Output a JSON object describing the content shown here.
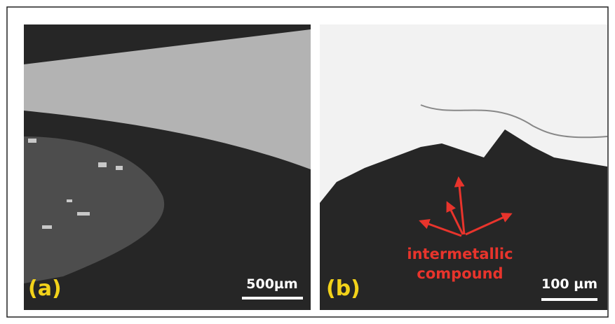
{
  "panels": [
    {
      "label": "(a)",
      "scale_bar": "500µm"
    },
    {
      "label": "(b)",
      "scale_bar": "100 µm",
      "annotation": [
        "intermetallic",
        "compound"
      ]
    }
  ]
}
